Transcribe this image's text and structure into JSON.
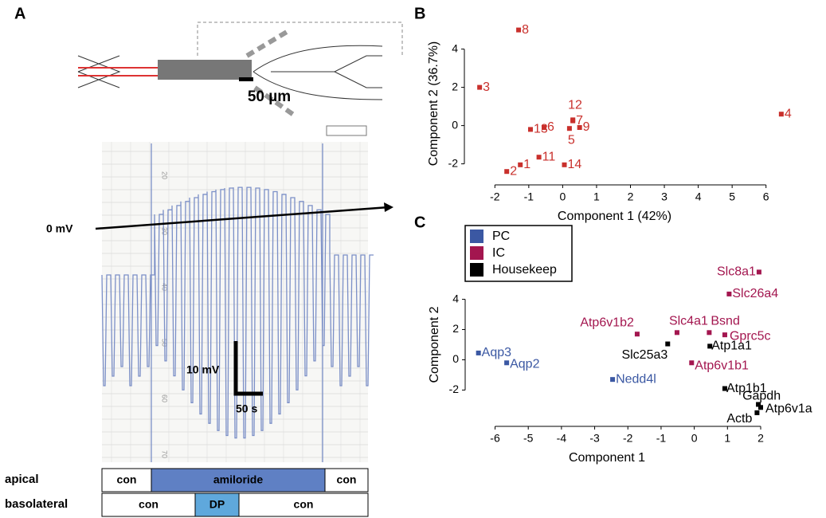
{
  "panel_a": {
    "panel": "A",
    "scale_bar": "50 µm",
    "zero_label": "0 mV",
    "v_scale": "10 mV",
    "t_scale": "50 s",
    "paper_ticks": [
      "20",
      "30",
      "40",
      "50",
      "60",
      "70"
    ],
    "rows": [
      {
        "label": "apical",
        "cells": [
          "con",
          "amiloride",
          "con"
        ]
      },
      {
        "label": "basolateral",
        "cells": [
          "con",
          "DP",
          "con"
        ]
      }
    ]
  },
  "chart_data": [
    {
      "type": "scatter",
      "panel": "B",
      "x_label": "Component 1 (42%)",
      "y_label": "Component 2 (36.7%)",
      "color": "#c9302c",
      "labels": [
        "1",
        "2",
        "3",
        "4",
        "5",
        "6",
        "7",
        "8",
        "9",
        "11",
        "12",
        "13",
        "14"
      ],
      "x": [
        -1.25,
        -1.65,
        -2.45,
        6.45,
        0.2,
        -0.55,
        0.3,
        -1.3,
        0.5,
        -0.7,
        0.3,
        -0.95,
        0.05
      ],
      "values": [
        -2.05,
        -2.4,
        2.0,
        0.6,
        -0.15,
        -0.1,
        0.25,
        5.0,
        -0.1,
        -1.65,
        0.3,
        -0.2,
        -2.05
      ],
      "xlim": [
        -2.9,
        6.9
      ],
      "ylim": [
        -3.1,
        5.4
      ],
      "xticks": [
        -2,
        -1,
        0,
        1,
        2,
        3,
        4,
        5,
        6
      ],
      "yticks": [
        -2,
        0,
        2,
        4
      ]
    },
    {
      "type": "scatter",
      "panel": "C",
      "x_label": "Component 1",
      "y_label": "Component 2",
      "series": [
        {
          "name": "PC",
          "color": "#3b58a3",
          "labels": [
            "Aqp3",
            "Aqp2",
            "Nedd4l"
          ],
          "x": [
            -6.5,
            -5.65,
            -2.46
          ],
          "values": [
            0.45,
            -0.2,
            -1.3
          ]
        },
        {
          "name": "IC",
          "color": "#a3164f",
          "labels": [
            "Slc8a1",
            "Slc26a4",
            "Atp6v1b2",
            "Slc4a1",
            "Bsnd",
            "Gprc5c",
            "Atp6v1b1"
          ],
          "x": [
            1.95,
            1.05,
            -1.72,
            -0.52,
            0.45,
            0.92,
            -0.08
          ],
          "values": [
            5.8,
            4.35,
            1.7,
            1.8,
            1.8,
            1.65,
            -0.2
          ]
        },
        {
          "name": "Housekeep",
          "color": "#000000",
          "labels": [
            "Slc25a3",
            "Atp1a1",
            "Atp1b1",
            "Gapdh",
            "Actb",
            "Atp6v1a"
          ],
          "x": [
            -0.8,
            0.47,
            0.92,
            1.93,
            1.89,
            2.0
          ],
          "values": [
            1.05,
            0.9,
            -1.9,
            -2.95,
            -3.5,
            -3.15
          ]
        }
      ],
      "xlim": [
        -6.9,
        2.6
      ],
      "ylim": [
        -4.4,
        6.4
      ],
      "xticks": [
        -6,
        -5,
        -4,
        -3,
        -2,
        -1,
        0,
        1,
        2
      ],
      "yticks": [
        -2,
        0,
        2,
        4
      ],
      "legend": "top-left"
    }
  ]
}
